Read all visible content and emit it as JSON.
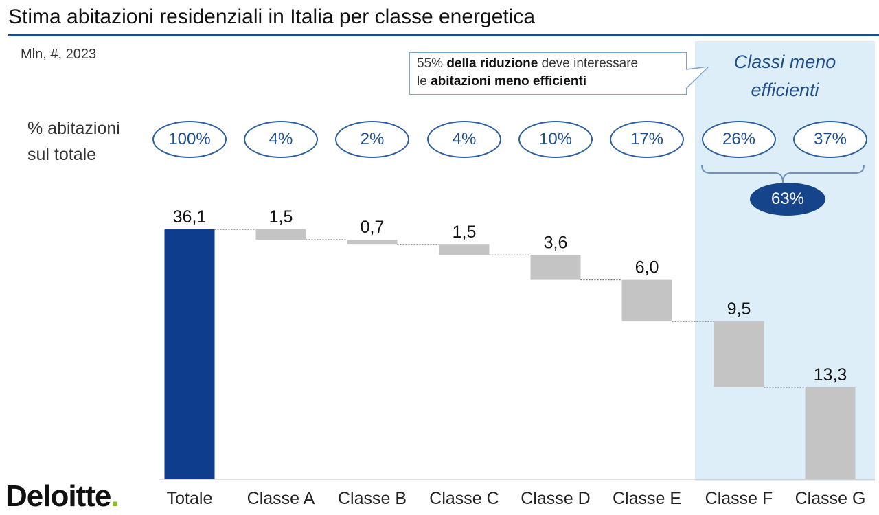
{
  "title": "Stima abitazioni residenziali in Italia per classe energetica",
  "unit_note": "Mln, #, 2023",
  "highlight_label_line1": "Classi meno",
  "highlight_label_line2": "efficienti",
  "callout": {
    "pct": "55%",
    "bold1": "della riduzione",
    "text1": "deve interessare",
    "text2": "le",
    "bold2": "abitazioni meno efficienti"
  },
  "pct_row_label_line1": "% abitazioni",
  "pct_row_label_line2": "sul totale",
  "percentages": [
    "100%",
    "4%",
    "2%",
    "4%",
    "10%",
    "17%",
    "26%",
    "37%"
  ],
  "group_total": "63%",
  "logo_text": "Deloitte",
  "logo_dot": ".",
  "colors": {
    "total_bar": "#0e3d8e",
    "step_bar": "#c4c4c4",
    "highlight_bg": "#deeef9",
    "accent": "#1f4e8c",
    "logo_dot": "#86bc25"
  },
  "chart_data": {
    "type": "waterfall",
    "categories": [
      "Totale",
      "Classe A",
      "Classe B",
      "Classe C",
      "Classe D",
      "Classe E",
      "Classe F",
      "Classe G"
    ],
    "values": [
      36.1,
      1.5,
      0.7,
      1.5,
      3.6,
      6.0,
      9.5,
      13.3
    ],
    "value_labels": [
      "36,1",
      "1,5",
      "0,7",
      "1,5",
      "3,6",
      "6,0",
      "9,5",
      "13,3"
    ],
    "highlighted_categories": [
      "Classe F",
      "Classe G"
    ],
    "ylim": [
      0,
      36.1
    ]
  }
}
